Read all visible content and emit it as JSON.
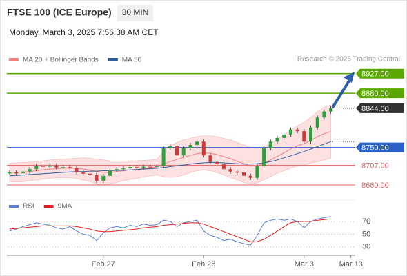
{
  "header": {
    "title": "FTSE 100 (ICE Europe)",
    "interval": "30 MIN",
    "datetime": "Monday, March 3, 2025 7:56:38 AM CET",
    "credit": "Research © 2025 Trading Central"
  },
  "chart_data": [
    {
      "type": "candlestick",
      "legend": [
        "MA 20 + Bollinger Bands",
        "MA 50"
      ],
      "legend_colors": [
        "#f08080",
        "#2f5e9e"
      ],
      "categories": [
        null,
        null,
        null,
        null,
        null,
        null,
        null,
        null,
        null,
        null,
        null,
        null,
        null,
        null,
        "Feb 27",
        null,
        null,
        null,
        null,
        null,
        null,
        null,
        null,
        null,
        null,
        null,
        null,
        null,
        null,
        "Feb 28",
        null,
        null,
        null,
        null,
        null,
        null,
        null,
        null,
        null,
        null,
        null,
        null,
        null,
        null,
        "Mar 3",
        null,
        null,
        null,
        null,
        null,
        null,
        "Mar 13"
      ],
      "close": [
        8690,
        8688,
        8692,
        8698,
        8706,
        8704,
        8707,
        8702,
        8703,
        8700,
        8690,
        8687,
        8684,
        8670,
        8682,
        8695,
        8698,
        8700,
        8703,
        8701,
        8704,
        8703,
        8706,
        8748,
        8753,
        8731,
        8748,
        8756,
        8764,
        8731,
        8715,
        8710,
        8698,
        8692,
        8690,
        8682,
        8677,
        8706,
        8748,
        8764,
        8773,
        8781,
        8793,
        8789,
        8764,
        8798,
        8822,
        8836,
        8844,
        null,
        null,
        null
      ],
      "up_color": "#2e9e3e",
      "down_color": "#d03a3a",
      "bands": {
        "upper": [
          8712,
          8713,
          8714,
          8715,
          8716,
          8718,
          8720,
          8721,
          8722,
          8723,
          8724,
          8725,
          8724,
          8722,
          8720,
          8718,
          8717,
          8717,
          8718,
          8718,
          8719,
          8720,
          8722,
          8740,
          8755,
          8762,
          8768,
          8772,
          8776,
          8778,
          8778,
          8776,
          8772,
          8768,
          8762,
          8756,
          8750,
          8748,
          8752,
          8760,
          8770,
          8780,
          8792,
          8802,
          8810,
          8822,
          8835,
          8846,
          8852,
          null,
          null,
          null
        ],
        "lower": [
          8668,
          8667,
          8668,
          8670,
          8672,
          8674,
          8676,
          8677,
          8678,
          8677,
          8675,
          8672,
          8668,
          8662,
          8660,
          8662,
          8666,
          8670,
          8673,
          8676,
          8679,
          8682,
          8684,
          8680,
          8678,
          8680,
          8684,
          8690,
          8694,
          8696,
          8694,
          8690,
          8684,
          8678,
          8672,
          8666,
          8662,
          8665,
          8672,
          8680,
          8688,
          8694,
          8700,
          8705,
          8708,
          8712,
          8716,
          8720,
          8724,
          null,
          null,
          null
        ],
        "color": "#fde0e0"
      },
      "series": [
        {
          "name": "MA 20",
          "color": "#f08080",
          "values": [
            8690,
            8690,
            8691,
            8692,
            8694,
            8696,
            8698,
            8699,
            8700,
            8700,
            8700,
            8698,
            8696,
            8692,
            8690,
            8690,
            8692,
            8694,
            8696,
            8697,
            8699,
            8701,
            8703,
            8710,
            8716,
            8721,
            8726,
            8731,
            8735,
            8737,
            8736,
            8733,
            8728,
            8723,
            8717,
            8711,
            8706,
            8706,
            8712,
            8720,
            8729,
            8737,
            8746,
            8754,
            8759,
            8767,
            8776,
            8783,
            8788,
            null,
            null,
            null
          ]
        },
        {
          "name": "MA 50",
          "color": "#2f5e9e",
          "values": [
            8682,
            8683,
            8684,
            8685,
            8686,
            8687,
            8688,
            8689,
            8690,
            8691,
            8692,
            8692,
            8693,
            8693,
            8694,
            8694,
            8695,
            8695,
            8696,
            8697,
            8698,
            8699,
            8700,
            8702,
            8704,
            8706,
            8708,
            8710,
            8712,
            8713,
            8714,
            8714,
            8713,
            8712,
            8711,
            8710,
            8710,
            8711,
            8713,
            8716,
            8720,
            8725,
            8730,
            8735,
            8740,
            8746,
            8752,
            8758,
            8764,
            null,
            null,
            null
          ]
        }
      ],
      "ylim": [
        8627,
        8958
      ],
      "levels": [
        {
          "value": 8927,
          "label": "8927.00"
        },
        {
          "value": 8880,
          "label": "8880.00"
        },
        {
          "value": 8844,
          "label": "8844.00"
        },
        {
          "value": 8750,
          "label": "8750.00"
        },
        {
          "value": 8707,
          "label": "8707.00"
        },
        {
          "value": 8660,
          "label": "8660.00"
        }
      ],
      "level_colors": [
        "#5aa700",
        "#5aa700",
        "#333333",
        "#2a62c8",
        "#e06060",
        "#e06060"
      ],
      "level_styles": [
        "box",
        "box",
        "box",
        "box",
        "text",
        "text"
      ],
      "level_lines": [
        "solid",
        "solid",
        "dotted",
        "solid",
        "solid",
        "solid"
      ]
    },
    {
      "type": "line",
      "series": [
        {
          "name": "RSI",
          "color": "#5b7fd6",
          "values": [
            55,
            58,
            62,
            65,
            68,
            66,
            64,
            60,
            58,
            62,
            55,
            50,
            48,
            40,
            52,
            60,
            62,
            60,
            64,
            62,
            66,
            64,
            65,
            72,
            70,
            62,
            68,
            70,
            72,
            55,
            48,
            45,
            40,
            42,
            38,
            35,
            33,
            48,
            68,
            72,
            74,
            72,
            74,
            70,
            60,
            70,
            74,
            76,
            78,
            null,
            null,
            null
          ]
        },
        {
          "name": "9MA",
          "color": "#e02020",
          "values": [
            58,
            59,
            60,
            61,
            62,
            63,
            63,
            63,
            63,
            63,
            62,
            60,
            58,
            55,
            54,
            54,
            55,
            56,
            57,
            58,
            60,
            61,
            62,
            64,
            65,
            66,
            67,
            68,
            68,
            66,
            62,
            58,
            54,
            50,
            46,
            42,
            38,
            38,
            42,
            48,
            55,
            62,
            68,
            70,
            70,
            70,
            72,
            73,
            74,
            null,
            null,
            null
          ]
        }
      ],
      "ylim": [
        21,
        82
      ],
      "yticks": [
        70,
        50,
        30
      ]
    }
  ]
}
